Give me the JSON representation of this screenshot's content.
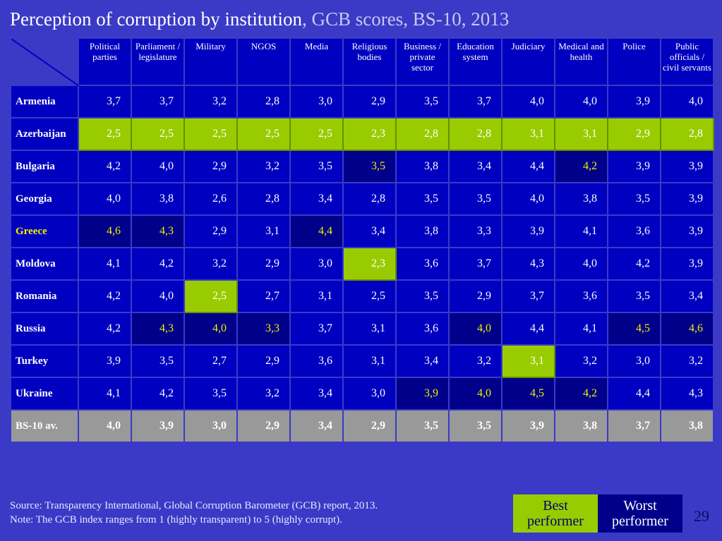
{
  "title_main": "Perception of corruption by institution",
  "title_sub": ", GCB scores, BS-10, 2013",
  "columns": [
    "Political parties",
    "Parliament / legislature",
    "Military",
    "NGOS",
    "Media",
    "Religious bodies",
    "Business / private sector",
    "Education system",
    "Judiciary",
    "Medical and health",
    "Police",
    "Public officials / civil servants"
  ],
  "rows": [
    {
      "name": "Armenia",
      "hl": false,
      "cells": [
        {
          "v": "3,7"
        },
        {
          "v": "3,7"
        },
        {
          "v": "3,2"
        },
        {
          "v": "2,8"
        },
        {
          "v": "3,0"
        },
        {
          "v": "2,9"
        },
        {
          "v": "3,5"
        },
        {
          "v": "3,7"
        },
        {
          "v": "4,0"
        },
        {
          "v": "4,0"
        },
        {
          "v": "3,9"
        },
        {
          "v": "4,0"
        }
      ]
    },
    {
      "name": "Azerbaijan",
      "hl": false,
      "cells": [
        {
          "v": "2,5",
          "s": "best"
        },
        {
          "v": "2,5",
          "s": "best"
        },
        {
          "v": "2,5",
          "s": "best"
        },
        {
          "v": "2,5",
          "s": "best"
        },
        {
          "v": "2,5",
          "s": "best"
        },
        {
          "v": "2,3",
          "s": "best"
        },
        {
          "v": "2,8",
          "s": "best"
        },
        {
          "v": "2,8",
          "s": "best"
        },
        {
          "v": "3,1",
          "s": "best"
        },
        {
          "v": "3,1",
          "s": "best"
        },
        {
          "v": "2,9",
          "s": "best"
        },
        {
          "v": "2,8",
          "s": "best"
        }
      ]
    },
    {
      "name": "Bulgaria",
      "hl": false,
      "cells": [
        {
          "v": "4,2"
        },
        {
          "v": "4,0"
        },
        {
          "v": "2,9"
        },
        {
          "v": "3,2"
        },
        {
          "v": "3,5"
        },
        {
          "v": "3,5",
          "s": "worst"
        },
        {
          "v": "3,8"
        },
        {
          "v": "3,4"
        },
        {
          "v": "4,4"
        },
        {
          "v": "4,2",
          "s": "worst"
        },
        {
          "v": "3,9"
        },
        {
          "v": "3,9"
        }
      ]
    },
    {
      "name": "Georgia",
      "hl": false,
      "cells": [
        {
          "v": "4,0"
        },
        {
          "v": "3,8"
        },
        {
          "v": "2,6"
        },
        {
          "v": "2,8"
        },
        {
          "v": "3,4"
        },
        {
          "v": "2,8"
        },
        {
          "v": "3,5"
        },
        {
          "v": "3,5"
        },
        {
          "v": "4,0"
        },
        {
          "v": "3,8"
        },
        {
          "v": "3,5"
        },
        {
          "v": "3,9"
        }
      ]
    },
    {
      "name": "Greece",
      "hl": true,
      "cells": [
        {
          "v": "4,6",
          "s": "worst"
        },
        {
          "v": "4,3",
          "s": "worst"
        },
        {
          "v": "2,9"
        },
        {
          "v": "3,1"
        },
        {
          "v": "4,4",
          "s": "worst"
        },
        {
          "v": "3,4"
        },
        {
          "v": "3,8"
        },
        {
          "v": "3,3"
        },
        {
          "v": "3,9"
        },
        {
          "v": "4,1"
        },
        {
          "v": "3,6"
        },
        {
          "v": "3,9"
        }
      ]
    },
    {
      "name": "Moldova",
      "hl": false,
      "cells": [
        {
          "v": "4,1"
        },
        {
          "v": "4,2"
        },
        {
          "v": "3,2"
        },
        {
          "v": "2,9"
        },
        {
          "v": "3,0"
        },
        {
          "v": "2,3",
          "s": "best"
        },
        {
          "v": "3,6"
        },
        {
          "v": "3,7"
        },
        {
          "v": "4,3"
        },
        {
          "v": "4,0"
        },
        {
          "v": "4,2"
        },
        {
          "v": "3,9"
        }
      ]
    },
    {
      "name": "Romania",
      "hl": false,
      "cells": [
        {
          "v": "4,2"
        },
        {
          "v": "4,0"
        },
        {
          "v": "2,5",
          "s": "best"
        },
        {
          "v": "2,7"
        },
        {
          "v": "3,1"
        },
        {
          "v": "2,5"
        },
        {
          "v": "3,5"
        },
        {
          "v": "2,9"
        },
        {
          "v": "3,7"
        },
        {
          "v": "3,6"
        },
        {
          "v": "3,5"
        },
        {
          "v": "3,4"
        }
      ]
    },
    {
      "name": "Russia",
      "hl": false,
      "cells": [
        {
          "v": "4,2"
        },
        {
          "v": "4,3",
          "s": "worst"
        },
        {
          "v": "4,0",
          "s": "worst"
        },
        {
          "v": "3,3",
          "s": "worst"
        },
        {
          "v": "3,7"
        },
        {
          "v": "3,1"
        },
        {
          "v": "3,6"
        },
        {
          "v": "4,0",
          "s": "worst"
        },
        {
          "v": "4,4"
        },
        {
          "v": "4,1"
        },
        {
          "v": "4,5",
          "s": "worst"
        },
        {
          "v": "4,6",
          "s": "worst"
        }
      ]
    },
    {
      "name": "Turkey",
      "hl": false,
      "cells": [
        {
          "v": "3,9"
        },
        {
          "v": "3,5"
        },
        {
          "v": "2,7"
        },
        {
          "v": "2,9"
        },
        {
          "v": "3,6"
        },
        {
          "v": "3,1"
        },
        {
          "v": "3,4"
        },
        {
          "v": "3,2"
        },
        {
          "v": "3,1",
          "s": "best"
        },
        {
          "v": "3,2"
        },
        {
          "v": "3,0"
        },
        {
          "v": "3,2"
        }
      ]
    },
    {
      "name": "Ukraine",
      "hl": false,
      "cells": [
        {
          "v": "4,1"
        },
        {
          "v": "4,2"
        },
        {
          "v": "3,5"
        },
        {
          "v": "3,2"
        },
        {
          "v": "3,4"
        },
        {
          "v": "3,0"
        },
        {
          "v": "3,9",
          "s": "worst"
        },
        {
          "v": "4,0",
          "s": "worst"
        },
        {
          "v": "4,5",
          "s": "worst"
        },
        {
          "v": "4,2",
          "s": "worst"
        },
        {
          "v": "4,4"
        },
        {
          "v": "4,3"
        }
      ]
    }
  ],
  "avg_row": {
    "name": "BS-10 av.",
    "cells": [
      {
        "v": "4,0"
      },
      {
        "v": "3,9"
      },
      {
        "v": "3,0"
      },
      {
        "v": "2,9"
      },
      {
        "v": "3,4"
      },
      {
        "v": "2,9"
      },
      {
        "v": "3,5"
      },
      {
        "v": "3,5"
      },
      {
        "v": "3,9"
      },
      {
        "v": "3,8"
      },
      {
        "v": "3,7"
      },
      {
        "v": "3,8"
      }
    ]
  },
  "legend": {
    "best": "Best performer",
    "worst": "Worst performer"
  },
  "source1": "Source: Transparency International, Global Corruption Barometer (GCB) report, 2013.",
  "source2": "Note: The GCB index ranges from 1 (highly transparent) to 5 (highly corrupt).",
  "page_number": "29",
  "colors": {
    "page_bg": "#3a3ac7",
    "cell_bg": "#0000c0",
    "best_bg": "#99cc00",
    "worst_bg": "#00008b",
    "worst_text": "#f0f000",
    "avg_bg": "#999999"
  }
}
